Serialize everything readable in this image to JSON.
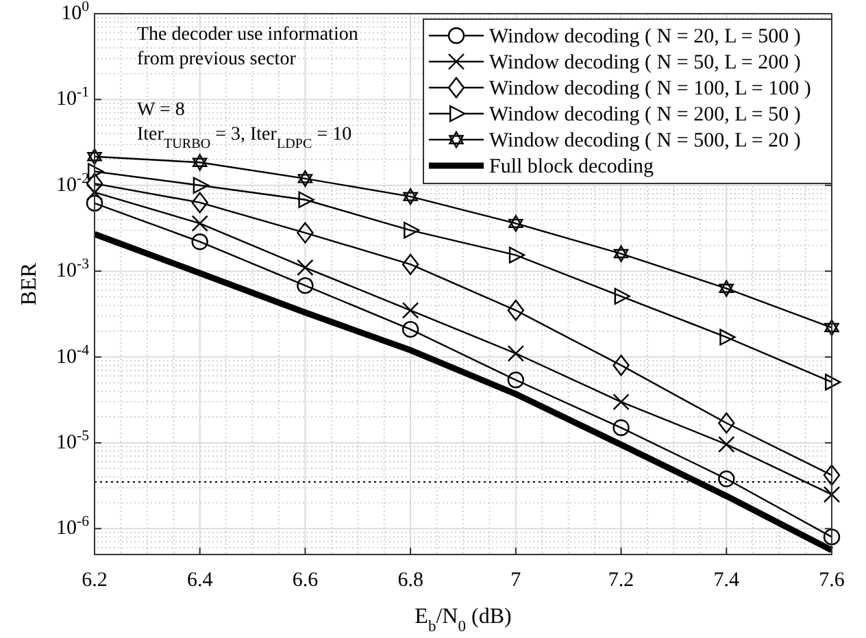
{
  "chart_data": {
    "type": "line",
    "xlabel": "E$_{b}$/N$_{0}$ (dB)",
    "ylabel": "BER",
    "annotations": [
      "The decoder use information from previous sector",
      "W = 8",
      "Iter$_{TURBO}$ = 3, Iter$_{LDPC}$ = 10"
    ],
    "x": [
      6.2,
      6.4,
      6.6,
      6.8,
      7,
      7.2,
      7.4,
      7.6
    ],
    "series": [
      {
        "name": "Window decoding ( N = 20, L = 500 )",
        "color": "#000000",
        "marker": "circle",
        "values": [
          0.0062,
          0.0022,
          0.00068,
          0.00021,
          5.4e-05,
          1.5e-05,
          3.8e-06,
          8e-07
        ]
      },
      {
        "name": "Window decoding ( N = 50, L = 200 )",
        "color": "#000000",
        "marker": "cross",
        "values": [
          0.0083,
          0.0036,
          0.0011,
          0.00035,
          0.00011,
          3e-05,
          9.6e-06,
          2.5e-06
        ]
      },
      {
        "name": "Window decoding ( N = 100, L = 100 )",
        "color": "#000000",
        "marker": "diamond",
        "values": [
          0.0105,
          0.0063,
          0.0028,
          0.0012,
          0.00035,
          8e-05,
          1.7e-05,
          4.2e-06
        ]
      },
      {
        "name": "Window decoding ( N = 200, L = 50 )",
        "color": "#000000",
        "marker": "triangle",
        "values": [
          0.0145,
          0.01,
          0.0068,
          0.003,
          0.00154,
          0.00051,
          0.00017,
          5.1e-05
        ]
      },
      {
        "name": "Window decoding ( N = 500, L = 20 )",
        "color": "#000000",
        "marker": "star",
        "values": [
          0.0216,
          0.0185,
          0.012,
          0.0074,
          0.0036,
          0.0016,
          0.00063,
          0.00022
        ]
      },
      {
        "name": "Full block decoding",
        "color": "#000000",
        "marker": "none",
        "values": [
          0.0027,
          0.00095,
          0.00033,
          0.00012,
          3.7e-05,
          9.5e-06,
          2.4e-06,
          5.6e-07
        ]
      }
    ],
    "ref_lines": [
      {
        "axis": "y",
        "value": 3.5e-06,
        "line_style": "dotted",
        "color": "#000000"
      }
    ],
    "log": "y",
    "grid": true,
    "legend": "top right",
    "line_style": "solid",
    "xlim": [
      6.2,
      7.6
    ],
    "xticks": [
      6.2,
      6.4,
      6.6,
      6.8,
      7,
      7.2,
      7.4,
      7.6
    ],
    "ylim": [
      5e-07,
      1
    ],
    "yticks": [
      {
        "value": 1,
        "label": "10$^{0}$"
      },
      {
        "value": 0.1,
        "label": "10$^{-1}$"
      },
      {
        "value": 0.01,
        "label": "10$^{-2}$"
      },
      {
        "value": 0.001,
        "label": "10$^{-3}$"
      },
      {
        "value": 0.0001,
        "label": "10$^{-4}$"
      },
      {
        "value": 1e-05,
        "label": "10$^{-5}$"
      },
      {
        "value": 1e-06,
        "label": "10$^{-6}$"
      }
    ]
  }
}
